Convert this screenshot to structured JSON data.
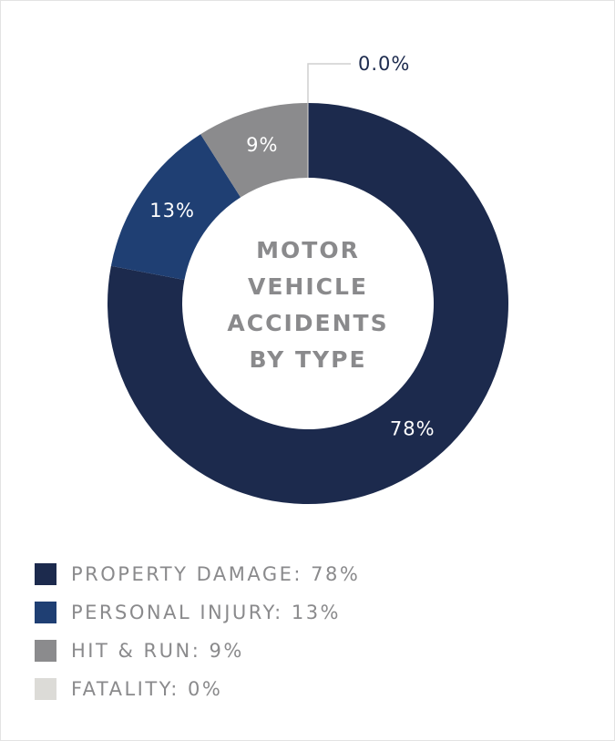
{
  "chart_data": {
    "type": "donut",
    "title_lines": [
      "MOTOR",
      "VEHICLE",
      "ACCIDENTS",
      "BY TYPE"
    ],
    "categories": [
      "PROPERTY DAMAGE: 78%",
      "PERSONAL INJURY: 13%",
      "HIT & RUN: 9%",
      "FATALITY: 0%"
    ],
    "values": [
      78,
      13,
      9,
      0
    ],
    "value_labels": [
      "78%",
      "13%",
      "9%",
      "0.0%"
    ],
    "colors": [
      "#1c2a4d",
      "#1f3f73",
      "#8b8b8d",
      "#dcdbd7"
    ],
    "legend": "bottom-left"
  }
}
